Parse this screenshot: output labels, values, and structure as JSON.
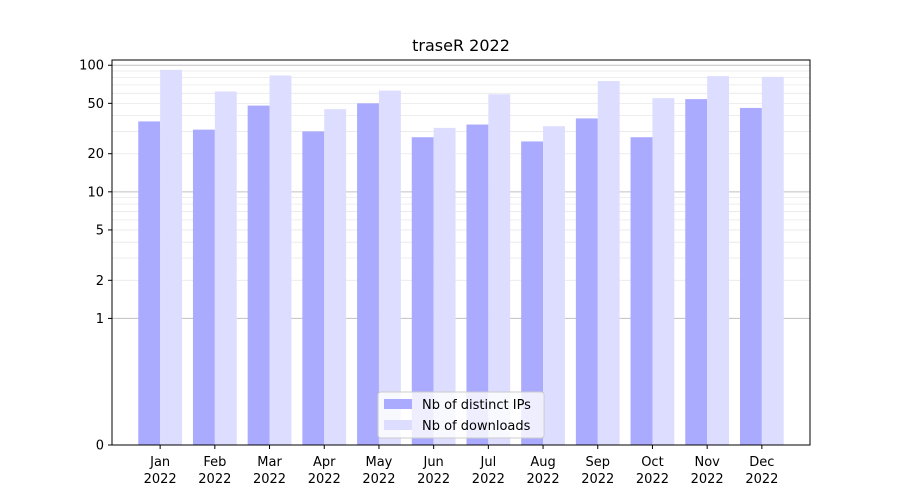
{
  "chart_data": {
    "type": "bar",
    "title": "traseR 2022",
    "xlabel": "",
    "ylabel": "",
    "yscale": "symlog",
    "ylim": [
      0,
      110
    ],
    "yticks": [
      0,
      1,
      2,
      5,
      10,
      20,
      50,
      100
    ],
    "categories": [
      "Jan\n2022",
      "Feb\n2022",
      "Mar\n2022",
      "Apr\n2022",
      "May\n2022",
      "Jun\n2022",
      "Jul\n2022",
      "Aug\n2022",
      "Sep\n2022",
      "Oct\n2022",
      "Nov\n2022",
      "Dec\n2022"
    ],
    "series": [
      {
        "name": "Nb of distinct IPs",
        "color": "#aaaaff",
        "values": [
          36,
          31,
          48,
          30,
          50,
          27,
          34,
          25,
          38,
          27,
          54,
          46
        ]
      },
      {
        "name": "Nb of downloads",
        "color": "#ddddff",
        "values": [
          92,
          62,
          83,
          45,
          63,
          32,
          59,
          33,
          75,
          55,
          82,
          81
        ]
      }
    ],
    "legend_position": "lower center",
    "grid": true
  }
}
